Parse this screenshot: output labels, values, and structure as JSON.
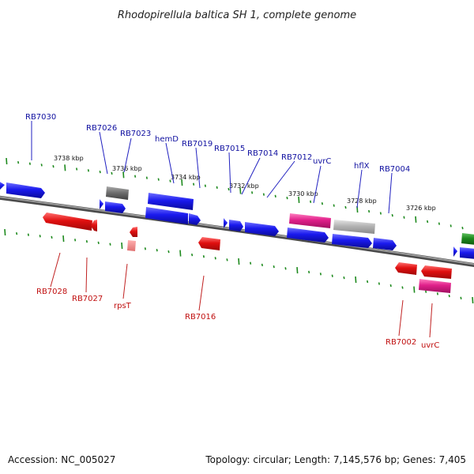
{
  "title": "Rhodopirellula baltica SH 1, complete genome",
  "footer": {
    "accession": "Accession: NC_005027",
    "summary": "Topology: circular; Length: 7,145,576 bp; Genes: 7,405"
  },
  "colors": {
    "forward_gene": "#1a1aee",
    "reverse_gene": "#e01010",
    "rna_gene": "#e0208a",
    "pseudo_gene": "#707070",
    "other_gene": "#b4b4b4",
    "tick": "#1e8a1e",
    "backbone": "#7a7a7a",
    "forward_label": "#1010a0",
    "reverse_label": "#c01010"
  },
  "kbp_labels": [
    {
      "text": "3738 kbp",
      "pos": 3738.0
    },
    {
      "text": "3736 kbp",
      "pos": 3736.0
    },
    {
      "text": "3734 kbp",
      "pos": 3734.0
    },
    {
      "text": "3732 kbp",
      "pos": 3732.0
    },
    {
      "text": "3730 kbp",
      "pos": 3730.0
    },
    {
      "text": "3728 kbp",
      "pos": 3728.0
    },
    {
      "text": "3726 kbp",
      "pos": 3726.0
    }
  ],
  "forward_labels": [
    {
      "text": "RB7030"
    },
    {
      "text": "RB7026"
    },
    {
      "text": "RB7023"
    },
    {
      "text": "hemD"
    },
    {
      "text": "RB7019"
    },
    {
      "text": "RB7015"
    },
    {
      "text": "RB7014"
    },
    {
      "text": "RB7012"
    },
    {
      "text": "uvrC"
    },
    {
      "text": "hflX"
    },
    {
      "text": "RB7004"
    }
  ],
  "reverse_labels": [
    {
      "text": "RB7028"
    },
    {
      "text": "RB7027"
    },
    {
      "text": "rpsT"
    },
    {
      "text": "RB7016"
    },
    {
      "text": "RB7002"
    },
    {
      "text": "uvrC"
    }
  ]
}
